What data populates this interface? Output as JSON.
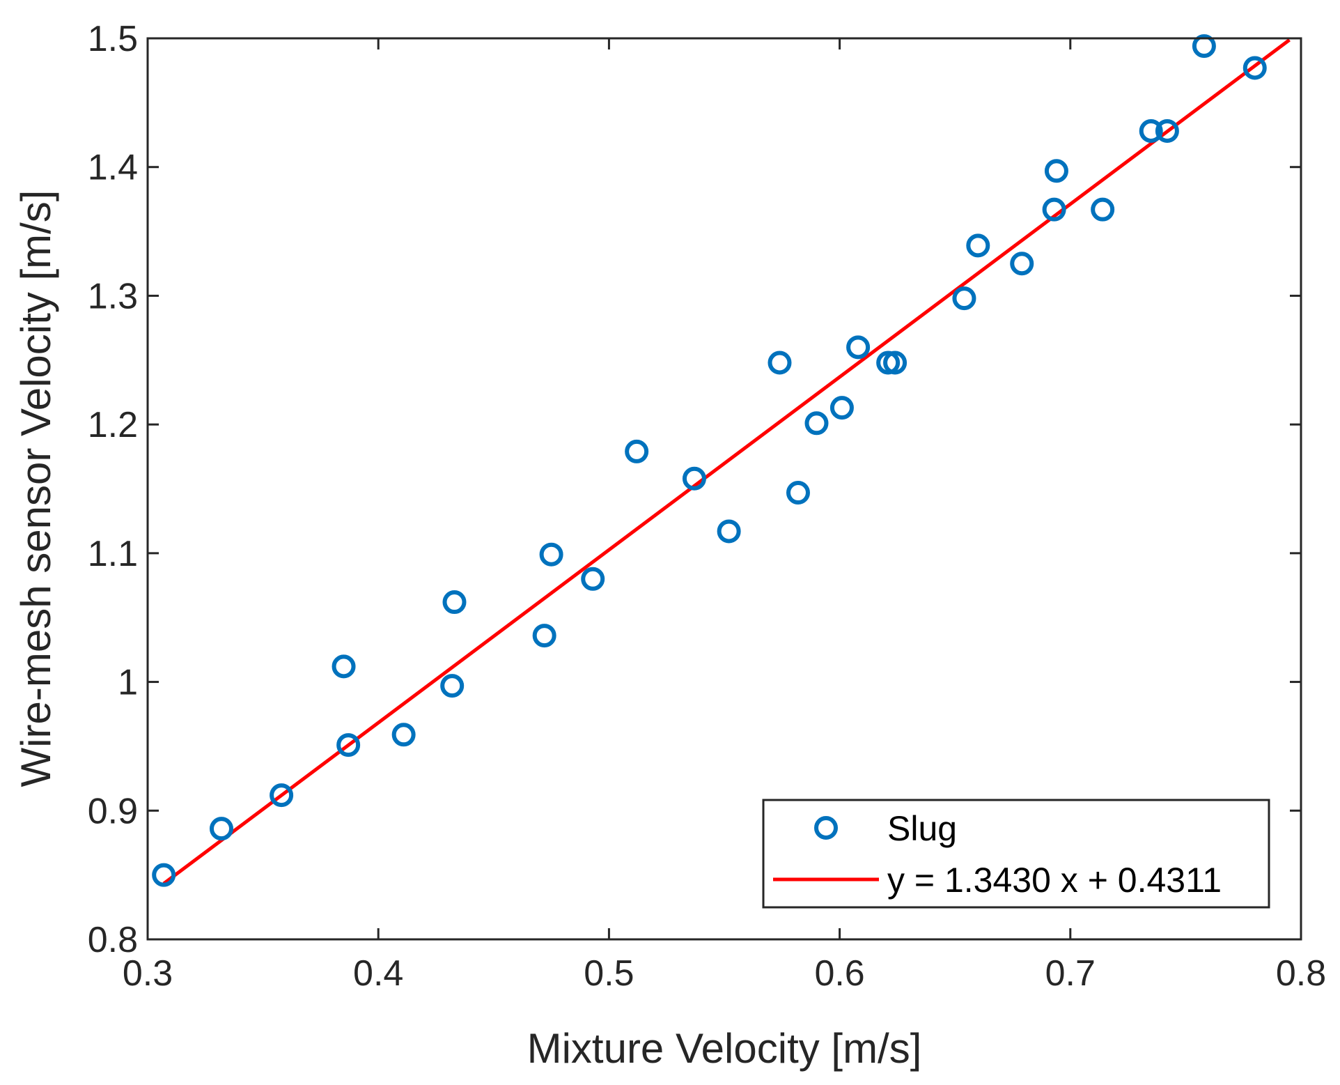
{
  "chart_data": {
    "type": "scatter",
    "title": "",
    "xlabel": "Mixture Velocity [m/s]",
    "ylabel": "Wire-mesh sensor Velocity [m/s]",
    "xlim": [
      0.3,
      0.8
    ],
    "ylim": [
      0.8,
      1.5
    ],
    "xticks": [
      "0.3",
      "0.4",
      "0.5",
      "0.6",
      "0.7",
      "0.8"
    ],
    "yticks": [
      "0.8",
      "0.9",
      "1",
      "1.1",
      "1.2",
      "1.3",
      "1.4",
      "1.5"
    ],
    "grid": false,
    "legend_position": "bottom-right",
    "series": [
      {
        "name": "Slug",
        "kind": "scatter",
        "marker": "circle-open",
        "color": "#0072BD",
        "points": [
          [
            0.307,
            0.85
          ],
          [
            0.332,
            0.886
          ],
          [
            0.358,
            0.912
          ],
          [
            0.385,
            1.012
          ],
          [
            0.387,
            0.951
          ],
          [
            0.411,
            0.959
          ],
          [
            0.432,
            0.997
          ],
          [
            0.433,
            1.062
          ],
          [
            0.472,
            1.036
          ],
          [
            0.475,
            1.099
          ],
          [
            0.493,
            1.08
          ],
          [
            0.512,
            1.179
          ],
          [
            0.537,
            1.158
          ],
          [
            0.552,
            1.117
          ],
          [
            0.574,
            1.248
          ],
          [
            0.582,
            1.147
          ],
          [
            0.59,
            1.201
          ],
          [
            0.601,
            1.213
          ],
          [
            0.608,
            1.26
          ],
          [
            0.621,
            1.248
          ],
          [
            0.624,
            1.248
          ],
          [
            0.654,
            1.298
          ],
          [
            0.66,
            1.339
          ],
          [
            0.679,
            1.325
          ],
          [
            0.693,
            1.367
          ],
          [
            0.694,
            1.397
          ],
          [
            0.714,
            1.367
          ],
          [
            0.735,
            1.428
          ],
          [
            0.742,
            1.428
          ],
          [
            0.758,
            1.494
          ],
          [
            0.78,
            1.477
          ]
        ]
      },
      {
        "name": "y = 1.3430 x + 0.4311",
        "kind": "line",
        "color": "#FF0000",
        "slope": 1.343,
        "intercept": 0.4311,
        "x_range": [
          0.307,
          0.795
        ]
      }
    ]
  }
}
